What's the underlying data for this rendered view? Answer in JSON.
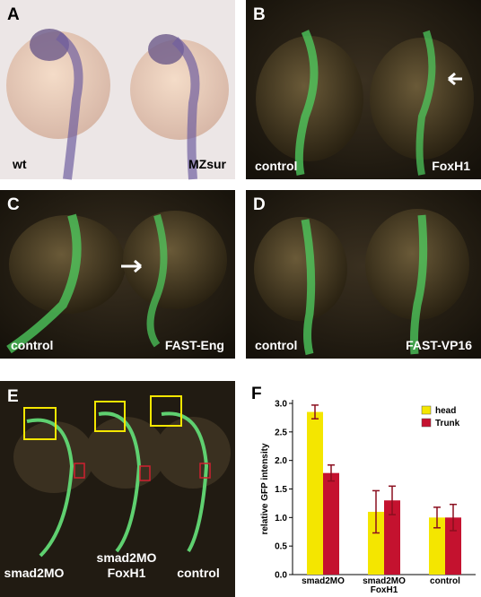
{
  "panels": [
    {
      "letter": "A",
      "labels": [
        "wt",
        "MZsur"
      ]
    },
    {
      "letter": "B",
      "labels": [
        "control",
        "FoxH1"
      ]
    },
    {
      "letter": "C",
      "labels": [
        "control",
        "FAST-Eng"
      ]
    },
    {
      "letter": "D",
      "labels": [
        "control",
        "FAST-VP16"
      ]
    },
    {
      "letter": "E",
      "labels": [
        "smad2MO",
        "smad2MO FoxH1",
        "control"
      ]
    }
  ],
  "chart_data": {
    "type": "bar",
    "letter": "F",
    "ylabel": "relative GFP intensity",
    "categories": [
      "smad2MO",
      "smad2MO FoxH1",
      "control"
    ],
    "series": [
      {
        "name": "head",
        "color": "#f4e600",
        "values": [
          2.85,
          1.1,
          1.0
        ],
        "errors": [
          0.12,
          0.37,
          0.18
        ]
      },
      {
        "name": "Trunk",
        "color": "#c4122f",
        "values": [
          1.78,
          1.3,
          1.0
        ],
        "errors": [
          0.14,
          0.25,
          0.23
        ]
      }
    ],
    "ylim": [
      0,
      3
    ],
    "yticks": [
      {
        "value": 0,
        "label": "0.0"
      },
      0.5,
      {
        "value": 1,
        "label": "1.0"
      },
      1.5,
      {
        "value": 2,
        "label": "2.0"
      },
      2.5,
      {
        "value": 3,
        "label": "3.0"
      }
    ],
    "legend": "upper right"
  }
}
